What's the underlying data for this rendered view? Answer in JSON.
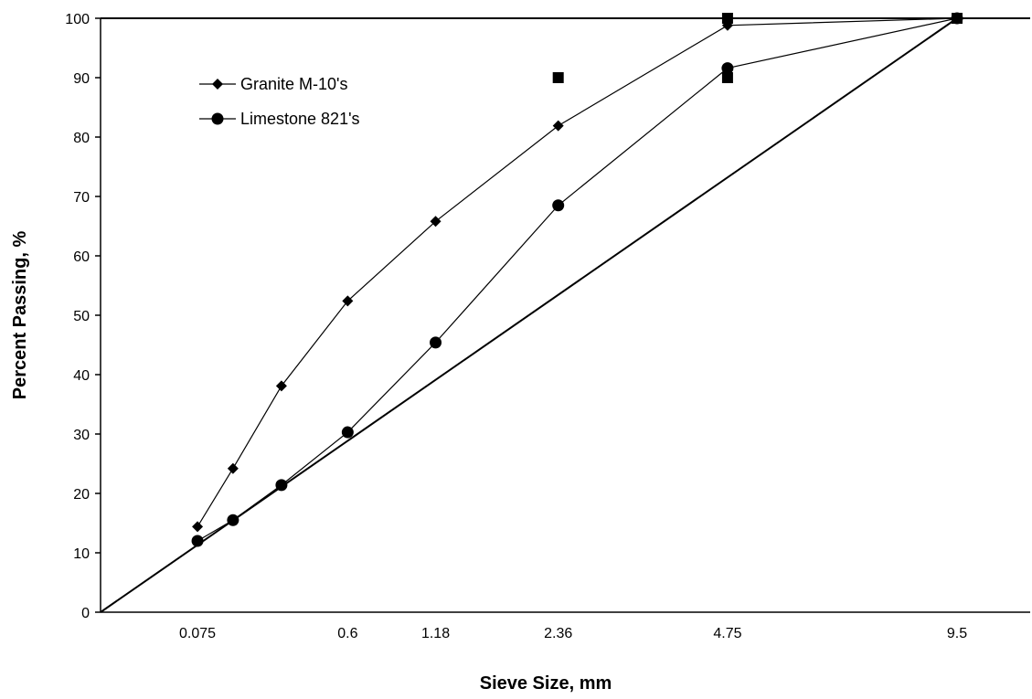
{
  "chart_data": {
    "type": "line",
    "title": "",
    "xlabel": "Sieve Size, mm",
    "ylabel": "Percent Passing, %",
    "x_scale": "0.45 power (Superpave gradation chart)",
    "x_tick_labels": [
      "0.075",
      "0.6",
      "1.18",
      "2.36",
      "4.75",
      "9.5"
    ],
    "x_tick_values": [
      0.075,
      0.6,
      1.18,
      2.36,
      4.75,
      9.5
    ],
    "ylim": [
      0,
      100
    ],
    "y_ticks": [
      0,
      10,
      20,
      30,
      40,
      50,
      60,
      70,
      80,
      90,
      100
    ],
    "legend_position": "top-left",
    "series": [
      {
        "name": "Granite M-10's",
        "marker": "diamond",
        "x": [
          0.075,
          0.15,
          0.3,
          0.6,
          1.18,
          2.36,
          4.75,
          9.5
        ],
        "y": [
          14.4,
          24.2,
          38.1,
          52.4,
          65.8,
          81.9,
          98.8,
          100
        ]
      },
      {
        "name": "Limestone 821's",
        "marker": "circle",
        "x": [
          0.075,
          0.15,
          0.3,
          0.6,
          1.18,
          2.36,
          4.75,
          9.5
        ],
        "y": [
          12.0,
          15.5,
          21.4,
          30.3,
          45.4,
          68.5,
          91.6,
          100
        ]
      },
      {
        "marker": "line",
        "x": [
          0,
          9.5
        ],
        "y": [
          0,
          100
        ]
      },
      {
        "marker": "square",
        "x": [
          2.36,
          4.75,
          4.75,
          9.5
        ],
        "y": [
          90,
          90,
          100,
          100
        ]
      }
    ]
  }
}
